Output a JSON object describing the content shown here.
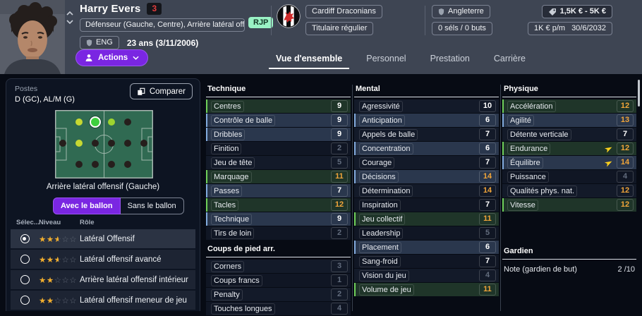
{
  "header": {
    "player_name": "Harry Evers",
    "squad_number": "3",
    "position_summary": "Défenseur (Gauche, Centre), Arrière latéral offens...",
    "rjp_badge": "RJP",
    "nationality_code": "ENG",
    "age_and_dob": "23 ans (3/11/2006)",
    "club": {
      "name": "Cardiff Draconians",
      "playing_status": "Titulaire régulier"
    },
    "international": {
      "country": "Angleterre",
      "record": "0 séls / 0 buts"
    },
    "finance": {
      "value_range": "1,5K € - 5K €",
      "wage": "1K € p/m",
      "contract_until": "30/6/2032"
    }
  },
  "toolbar": {
    "actions_label": "Actions"
  },
  "tabs": [
    {
      "label": "Vue d'ensemble",
      "active": true
    },
    {
      "label": "Personnel",
      "active": false
    },
    {
      "label": "Prestation",
      "active": false
    },
    {
      "label": "Carrière",
      "active": false
    }
  ],
  "positions_panel": {
    "title": "Postes",
    "positions_value": "D (GC), AL/M (G)",
    "compare_label": "Comparer",
    "selected_position_caption": "Arrière latéral offensif (Gauche)",
    "toggle": {
      "with_ball_label": "Avec le ballon",
      "without_ball_label": "Sans le ballon",
      "active": "with_ball"
    },
    "roles_table": {
      "col_selected": "Sélec...",
      "col_level": "Niveau",
      "col_role": "Rôle",
      "rows": [
        {
          "selected": true,
          "stars": 2.5,
          "role": "Latéral Offensif"
        },
        {
          "selected": false,
          "stars": 2.5,
          "role": "Latéral offensif avancé"
        },
        {
          "selected": false,
          "stars": 2,
          "role": "Arrière latéral offensif intérieur"
        },
        {
          "selected": false,
          "stars": 2,
          "role": "Latéral offensif meneur de jeu"
        }
      ]
    },
    "pitch": {
      "dots": [
        {
          "row": 0,
          "col": 1,
          "state": "yellow"
        },
        {
          "row": 0,
          "col": 2,
          "state": "selected"
        },
        {
          "row": 0,
          "col": 3,
          "state": "yellow-green"
        },
        {
          "row": 0,
          "col": 4,
          "state": "dark"
        },
        {
          "row": 1,
          "col": 0,
          "state": "dark"
        },
        {
          "row": 1,
          "col": 1,
          "state": "yellow"
        },
        {
          "row": 1,
          "col": 2,
          "state": "dark"
        },
        {
          "row": 1,
          "col": 3,
          "state": "dark"
        },
        {
          "row": 1,
          "col": 4,
          "state": "dark"
        },
        {
          "row": 1,
          "col": 5,
          "state": "dark"
        },
        {
          "row": 2,
          "col": 1,
          "state": "dark"
        },
        {
          "row": 2,
          "col": 2,
          "state": "dark"
        },
        {
          "row": 2,
          "col": 3,
          "state": "dark"
        },
        {
          "row": 2,
          "col": 4,
          "state": "dark"
        }
      ]
    }
  },
  "attributes": {
    "technique": {
      "title": "Technique",
      "rows": [
        {
          "label": "Centres",
          "value": 9,
          "highlight": "green"
        },
        {
          "label": "Contrôle de balle",
          "value": 9,
          "highlight": "blue"
        },
        {
          "label": "Dribbles",
          "value": 9,
          "highlight": "blue"
        },
        {
          "label": "Finition",
          "value": 2,
          "highlight": null
        },
        {
          "label": "Jeu de tête",
          "value": 5,
          "highlight": null
        },
        {
          "label": "Marquage",
          "value": 11,
          "highlight": "green"
        },
        {
          "label": "Passes",
          "value": 7,
          "highlight": "blue"
        },
        {
          "label": "Tacles",
          "value": 12,
          "highlight": "green"
        },
        {
          "label": "Technique",
          "value": 9,
          "highlight": "blue"
        },
        {
          "label": "Tirs de loin",
          "value": 2,
          "highlight": null
        }
      ]
    },
    "set_pieces": {
      "title": "Coups de pied arr.",
      "rows": [
        {
          "label": "Corners",
          "value": 3,
          "highlight": null
        },
        {
          "label": "Coups francs",
          "value": 1,
          "highlight": null
        },
        {
          "label": "Penalty",
          "value": 2,
          "highlight": null
        },
        {
          "label": "Touches longues",
          "value": 4,
          "highlight": null
        }
      ]
    },
    "mental": {
      "title": "Mental",
      "rows": [
        {
          "label": "Agressivité",
          "value": 10,
          "highlight": null
        },
        {
          "label": "Anticipation",
          "value": 6,
          "highlight": "blue"
        },
        {
          "label": "Appels de balle",
          "value": 7,
          "highlight": null
        },
        {
          "label": "Concentration",
          "value": 6,
          "highlight": "blue"
        },
        {
          "label": "Courage",
          "value": 7,
          "highlight": null
        },
        {
          "label": "Décisions",
          "value": 14,
          "highlight": "blue"
        },
        {
          "label": "Détermination",
          "value": 14,
          "highlight": null
        },
        {
          "label": "Inspiration",
          "value": 7,
          "highlight": null
        },
        {
          "label": "Jeu collectif",
          "value": 11,
          "highlight": "green"
        },
        {
          "label": "Leadership",
          "value": 5,
          "highlight": null
        },
        {
          "label": "Placement",
          "value": 6,
          "highlight": "blue"
        },
        {
          "label": "Sang-froid",
          "value": 7,
          "highlight": null
        },
        {
          "label": "Vision du jeu",
          "value": 4,
          "highlight": null
        },
        {
          "label": "Volume de jeu",
          "value": 11,
          "highlight": "green"
        }
      ]
    },
    "physique": {
      "title": "Physique",
      "rows": [
        {
          "label": "Accélération",
          "value": 12,
          "highlight": "green"
        },
        {
          "label": "Agilité",
          "value": 13,
          "highlight": "blue"
        },
        {
          "label": "Détente verticale",
          "value": 7,
          "highlight": null
        },
        {
          "label": "Endurance",
          "value": 12,
          "highlight": "green",
          "trend": "up"
        },
        {
          "label": "Équilibre",
          "value": 14,
          "highlight": "blue",
          "trend": "up"
        },
        {
          "label": "Puissance",
          "value": 4,
          "highlight": null
        },
        {
          "label": "Qualités phys. nat.",
          "value": 12,
          "highlight": null
        },
        {
          "label": "Vitesse",
          "value": 12,
          "highlight": "green"
        }
      ]
    },
    "goalkeeper": {
      "title": "Gardien",
      "note_label": "Note (gardien de but)",
      "note_value": "2 /10"
    }
  },
  "colors": {
    "accent_purple": "#7a26e2",
    "value_low": "#626c7d",
    "value_mid": "#ffffff",
    "value_high": "#f1a53a",
    "highlight_green_border": "#6fd05a",
    "highlight_blue_border": "#82abde",
    "star_gold": "#f0ad2e",
    "squad_number_red": "#e23d3d",
    "rjp_badge_bg": "#9af2c5",
    "pitch_green": "#306a52",
    "dot_yellow": "#c6d832",
    "dot_yellow_green": "#9ed42f",
    "dot_selected_green": "#3fd03f",
    "dot_dark": "#261e1c",
    "topbar_bg": "#3e4553",
    "page_bg": "#070b14"
  }
}
